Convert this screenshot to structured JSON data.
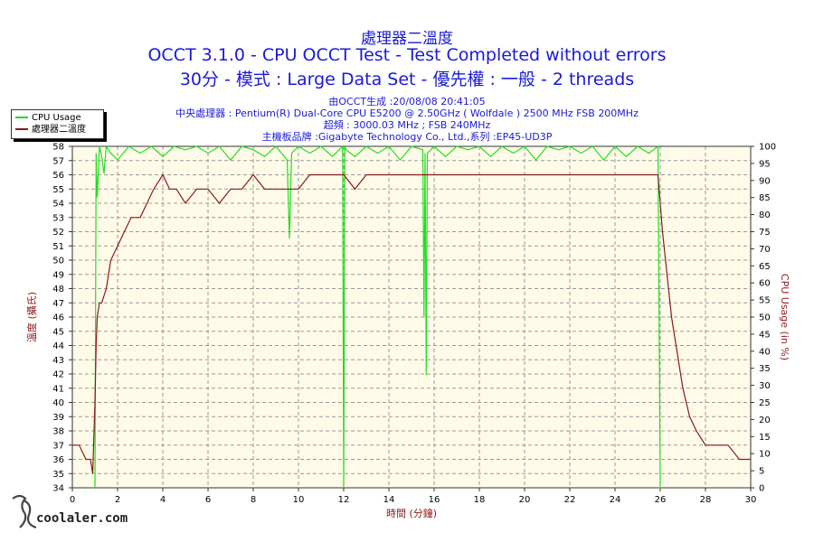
{
  "header": {
    "title_line1": "處理器二溫度",
    "title_line2": "OCCT 3.1.0 - CPU OCCT Test - Test Completed without errors",
    "title_line3": "30分 - 模式 : Large Data Set - 優先權 : 一般 - 2 threads",
    "info_generated": "由OCCT生成 :20/08/08 20:41:05",
    "info_cpu": "中央處理器 : Pentium(R) Dual-Core CPU E5200 @ 2.50GHz ( Wolfdale ) 2500 MHz FSB 200MHz",
    "info_oc": "超頻 : 3000.03 MHz ; FSB 240MHz",
    "info_board": "主機板品牌 :Gigabyte Technology Co., Ltd.,系列 :EP45-UD3P"
  },
  "watermark": {
    "text": "coolaler.com"
  },
  "colors": {
    "temp": "#8b1a1a",
    "cpu": "#22dd22",
    "axis_text": "#8b1a1a",
    "title": "#1a1ad6",
    "plot_bg": "#fffbe8"
  },
  "chart_data": {
    "type": "line",
    "xlabel": "時間 (分鐘)",
    "ylabel_left": "溫度 (攝氏)",
    "ylabel_right": "CPU Usage (in %)",
    "xlim": [
      0,
      30
    ],
    "ylim_left": [
      34,
      58
    ],
    "ylim_right": [
      0,
      100
    ],
    "x_ticks": [
      0,
      2,
      4,
      6,
      8,
      10,
      12,
      14,
      16,
      18,
      20,
      22,
      24,
      26,
      28,
      30
    ],
    "y_ticks_left": [
      34,
      35,
      36,
      37,
      38,
      39,
      40,
      41,
      42,
      43,
      44,
      45,
      46,
      47,
      48,
      49,
      50,
      51,
      52,
      53,
      54,
      55,
      56,
      57,
      58
    ],
    "y_ticks_right": [
      0,
      5,
      10,
      15,
      20,
      25,
      30,
      35,
      40,
      45,
      50,
      55,
      60,
      65,
      70,
      75,
      80,
      85,
      90,
      95,
      100
    ],
    "grid": true,
    "legend": "top-left",
    "series": [
      {
        "name": "CPU Usage",
        "axis": "right",
        "x": [
          0,
          0.9,
          1.0,
          1.05,
          1.1,
          1.2,
          1.3,
          1.4,
          1.5,
          1.7,
          2.0,
          2.5,
          3.0,
          3.5,
          4.0,
          4.5,
          5.0,
          5.5,
          6.0,
          6.5,
          7.0,
          7.5,
          8.0,
          8.5,
          9.0,
          9.5,
          9.6,
          9.7,
          10.0,
          10.5,
          11.0,
          11.5,
          11.95,
          12.0,
          12.05,
          12.1,
          12.5,
          13.0,
          13.5,
          14.0,
          14.5,
          15.0,
          15.5,
          15.55,
          15.6,
          15.65,
          15.7,
          16.0,
          16.5,
          17.0,
          17.5,
          18.0,
          18.5,
          19.0,
          19.5,
          20.0,
          20.5,
          21.0,
          21.5,
          22.0,
          22.5,
          23.0,
          23.5,
          24.0,
          24.5,
          25.0,
          25.5,
          25.9,
          26.0,
          26.05,
          26.1,
          27.0,
          28.0,
          29.0,
          30.0
        ],
        "values": [
          null,
          null,
          0,
          98,
          85,
          100,
          97,
          92,
          100,
          98,
          96,
          100,
          98,
          100,
          97,
          100,
          99,
          100,
          98,
          100,
          96,
          100,
          99,
          97,
          100,
          96,
          73,
          98,
          100,
          98,
          100,
          97,
          100,
          0,
          100,
          99,
          97,
          100,
          98,
          100,
          96,
          100,
          99,
          50,
          98,
          33,
          98,
          100,
          97,
          100,
          99,
          100,
          97,
          100,
          98,
          100,
          96,
          100,
          99,
          100,
          98,
          100,
          96,
          100,
          97,
          100,
          98,
          100,
          0,
          0,
          null,
          null,
          null,
          null,
          null
        ]
      },
      {
        "name": "處理器二溫度",
        "axis": "left",
        "x": [
          0,
          0.3,
          0.6,
          0.8,
          0.9,
          1.0,
          1.05,
          1.1,
          1.2,
          1.3,
          1.5,
          1.7,
          2.0,
          2.3,
          2.6,
          3.0,
          3.3,
          3.6,
          4.0,
          4.3,
          4.6,
          5.0,
          5.5,
          6.0,
          6.5,
          7.0,
          7.5,
          8.0,
          8.5,
          9.0,
          9.5,
          10.0,
          10.5,
          11.0,
          11.5,
          12.0,
          12.5,
          13.0,
          13.5,
          14.0,
          14.5,
          15.0,
          15.5,
          16.0,
          16.5,
          17.0,
          17.5,
          18.0,
          18.5,
          19.0,
          19.5,
          20.0,
          20.5,
          21.0,
          21.5,
          22.0,
          22.5,
          23.0,
          23.5,
          24.0,
          24.5,
          25.0,
          25.5,
          25.9,
          26.0,
          26.1,
          26.3,
          26.5,
          26.7,
          27.0,
          27.3,
          27.6,
          28.0,
          28.5,
          29.0,
          29.5,
          30.0
        ],
        "values": [
          37,
          37,
          36,
          36,
          35,
          40,
          44,
          46,
          47,
          47,
          48,
          50,
          51,
          52,
          53,
          53,
          54,
          55,
          56,
          55,
          55,
          54,
          55,
          55,
          54,
          55,
          55,
          56,
          55,
          55,
          55,
          55,
          56,
          56,
          56,
          56,
          55,
          56,
          56,
          56,
          56,
          56,
          56,
          56,
          56,
          56,
          56,
          56,
          56,
          56,
          56,
          56,
          56,
          56,
          56,
          56,
          56,
          56,
          56,
          56,
          56,
          56,
          56,
          56,
          54,
          52,
          49,
          46,
          44,
          41,
          39,
          38,
          37,
          37,
          37,
          36,
          36
        ]
      }
    ]
  }
}
